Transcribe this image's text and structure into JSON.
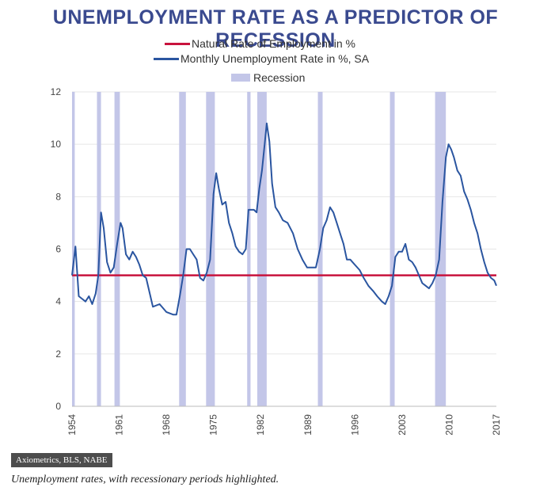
{
  "title": "UNEMPLOYMENT RATE AS A PREDICTOR OF RECESSION",
  "source": "Axiometrics, BLS, NABE",
  "caption": "Unemployment rates, with recessionary periods highlighted.",
  "colors": {
    "title": "#3a4a8f",
    "natural_rate": "#c8133d",
    "unemployment": "#2a55a0",
    "recession": "#c3c6e8",
    "grid": "#e6e6e6"
  },
  "chart_data": {
    "type": "line",
    "ylim": [
      0,
      12
    ],
    "yticks": [
      "0",
      "2",
      "4",
      "6",
      "8",
      "10",
      "12"
    ],
    "xlim": [
      1954,
      2017
    ],
    "xticks": [
      "1954",
      "1961",
      "1968",
      "1975",
      "1982",
      "1989",
      "1996",
      "2003",
      "2010",
      "2017"
    ],
    "grid": true,
    "legend_position": "top-center",
    "legend": [
      {
        "label": "Natural Rate of Employment in %",
        "kind": "line"
      },
      {
        "label": "Monthly Unemployment Rate in %, SA",
        "kind": "line"
      },
      {
        "label": "Recession",
        "kind": "box"
      }
    ],
    "natural_rate": 5,
    "recessions": [
      [
        1953.6,
        1954.4
      ],
      [
        1957.7,
        1958.3
      ],
      [
        1960.3,
        1961.1
      ],
      [
        1969.9,
        1970.9
      ],
      [
        1973.9,
        1975.2
      ],
      [
        1980.0,
        1980.5
      ],
      [
        1981.5,
        1982.9
      ],
      [
        1990.5,
        1991.2
      ],
      [
        2001.2,
        2001.9
      ],
      [
        2007.9,
        2009.5
      ]
    ],
    "series": [
      {
        "x": [
          1954.0,
          1954.5,
          1955.0,
          1955.5,
          1956.0,
          1956.5,
          1957.0,
          1957.5,
          1957.9,
          1958.3,
          1958.7,
          1959.2,
          1959.7,
          1960.2,
          1960.7,
          1961.2,
          1961.5,
          1962.0,
          1962.5,
          1963.0,
          1963.5,
          1964.0,
          1964.5,
          1965.0,
          1966.0,
          1967.0,
          1968.0,
          1969.0,
          1969.5,
          1970.0,
          1970.5,
          1971.0,
          1971.5,
          1972.0,
          1972.5,
          1973.0,
          1973.5,
          1974.0,
          1974.5,
          1975.0,
          1975.4,
          1975.8,
          1976.3,
          1976.8,
          1977.3,
          1977.8,
          1978.3,
          1978.8,
          1979.3,
          1979.8,
          1980.2,
          1980.6,
          1981.0,
          1981.4,
          1981.8,
          1982.2,
          1982.6,
          1982.9,
          1983.3,
          1983.7,
          1984.2,
          1984.7,
          1985.3,
          1986.0,
          1986.8,
          1987.5,
          1988.2,
          1988.9,
          1989.5,
          1990.2,
          1990.8,
          1991.3,
          1991.8,
          1992.3,
          1992.8,
          1993.3,
          1993.8,
          1994.3,
          1994.8,
          1995.3,
          1996.0,
          1996.7,
          1997.3,
          1998.0,
          1998.7,
          1999.3,
          2000.0,
          2000.5,
          2001.0,
          2001.5,
          2002.0,
          2002.5,
          2003.0,
          2003.5,
          2004.0,
          2004.5,
          2005.0,
          2005.5,
          2006.0,
          2006.5,
          2007.0,
          2007.5,
          2008.0,
          2008.5,
          2009.0,
          2009.5,
          2009.9,
          2010.3,
          2010.7,
          2011.2,
          2011.7,
          2012.2,
          2012.7,
          2013.2,
          2013.7,
          2014.2,
          2014.7,
          2015.2,
          2015.7,
          2016.2,
          2016.7,
          2017.0
        ],
        "values": [
          5.0,
          6.1,
          4.2,
          4.1,
          4.0,
          4.2,
          3.9,
          4.3,
          5.0,
          7.4,
          6.8,
          5.5,
          5.1,
          5.3,
          6.2,
          7.0,
          6.8,
          5.8,
          5.6,
          5.9,
          5.7,
          5.4,
          5.0,
          4.9,
          3.8,
          3.9,
          3.6,
          3.5,
          3.5,
          4.2,
          5.0,
          6.0,
          6.0,
          5.8,
          5.6,
          4.9,
          4.8,
          5.1,
          5.6,
          8.1,
          8.9,
          8.3,
          7.7,
          7.8,
          7.0,
          6.6,
          6.1,
          5.9,
          5.8,
          6.0,
          7.5,
          7.5,
          7.5,
          7.4,
          8.3,
          9.0,
          10.0,
          10.8,
          10.1,
          8.5,
          7.6,
          7.4,
          7.1,
          7.0,
          6.6,
          6.0,
          5.6,
          5.3,
          5.3,
          5.3,
          6.0,
          6.8,
          7.1,
          7.6,
          7.4,
          7.0,
          6.6,
          6.2,
          5.6,
          5.6,
          5.4,
          5.2,
          4.9,
          4.6,
          4.4,
          4.2,
          4.0,
          3.9,
          4.2,
          4.6,
          5.7,
          5.9,
          5.9,
          6.2,
          5.6,
          5.5,
          5.3,
          5.0,
          4.7,
          4.6,
          4.5,
          4.7,
          5.0,
          5.6,
          7.8,
          9.5,
          10.0,
          9.8,
          9.5,
          9.0,
          8.8,
          8.2,
          7.9,
          7.5,
          7.0,
          6.6,
          6.0,
          5.5,
          5.1,
          4.9,
          4.8,
          4.6
        ]
      }
    ]
  }
}
